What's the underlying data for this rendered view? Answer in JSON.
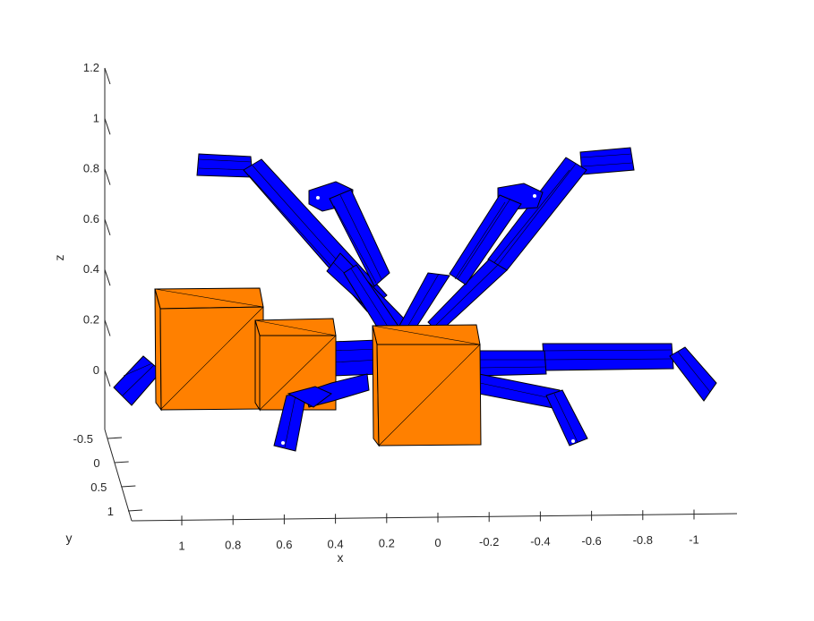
{
  "colors": {
    "box": "#ff8000",
    "limb": "#0000ff",
    "axis": "#262626"
  },
  "chart_data": {
    "type": "3d-scene",
    "title": "",
    "xlabel": "x",
    "ylabel": "y",
    "zlabel": "z",
    "x_ticks": [
      "1",
      "0.8",
      "0.6",
      "0.4",
      "0.2",
      "0",
      "-0.2",
      "-0.4",
      "-0.6",
      "-0.8",
      "-1"
    ],
    "y_ticks": [
      "-0.5",
      "0",
      "0.5",
      "1"
    ],
    "z_ticks": [
      "1.2",
      "1",
      "0.8",
      "0.6",
      "0.4",
      "0.2",
      "0"
    ],
    "xlim": [
      -1.2,
      1.2
    ],
    "ylim": [
      -0.7,
      1.2
    ],
    "zlim": [
      -0.2,
      1.2
    ],
    "grid": false,
    "objects": [
      {
        "kind": "box",
        "count": 3,
        "color": "orange"
      },
      {
        "kind": "robot-arm-segments",
        "count": 18,
        "color": "blue"
      }
    ]
  }
}
